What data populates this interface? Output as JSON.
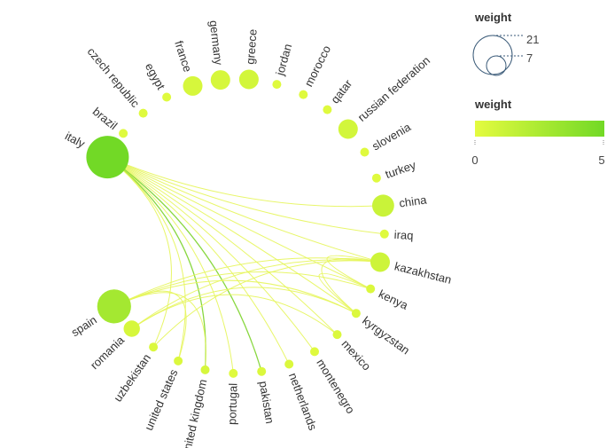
{
  "chart_data": {
    "type": "network",
    "layout": "circular",
    "nodes": [
      {
        "id": "italy",
        "label": "italy",
        "weight": 21,
        "color_value": 5
      },
      {
        "id": "brazil",
        "label": "brazil",
        "weight": 1,
        "color_value": 0.2
      },
      {
        "id": "czech republic",
        "label": "czech republic",
        "weight": 1,
        "color_value": 0.2
      },
      {
        "id": "egypt",
        "label": "egypt",
        "weight": 1,
        "color_value": 0.2
      },
      {
        "id": "france",
        "label": "france",
        "weight": 3,
        "color_value": 0.6
      },
      {
        "id": "germany",
        "label": "germany",
        "weight": 3,
        "color_value": 0.6
      },
      {
        "id": "greece",
        "label": "greece",
        "weight": 3,
        "color_value": 0.8
      },
      {
        "id": "jordan",
        "label": "jordan",
        "weight": 1,
        "color_value": 0.2
      },
      {
        "id": "morocco",
        "label": "morocco",
        "weight": 1,
        "color_value": 0.2
      },
      {
        "id": "qatar",
        "label": "qatar",
        "weight": 1,
        "color_value": 0.2
      },
      {
        "id": "russian federation",
        "label": "russian federation",
        "weight": 3,
        "color_value": 0.8
      },
      {
        "id": "slovenia",
        "label": "slovenia",
        "weight": 1,
        "color_value": 0.2
      },
      {
        "id": "turkey",
        "label": "turkey",
        "weight": 1,
        "color_value": 0.2
      },
      {
        "id": "china",
        "label": "china",
        "weight": 4,
        "color_value": 1.2
      },
      {
        "id": "iraq",
        "label": "iraq",
        "weight": 1,
        "color_value": 0.2
      },
      {
        "id": "kazakhstan",
        "label": "kazakhstan",
        "weight": 3,
        "color_value": 1.0
      },
      {
        "id": "kenya",
        "label": "kenya",
        "weight": 1,
        "color_value": 0.4
      },
      {
        "id": "kyrgyzstan",
        "label": "kyrgyzstan",
        "weight": 1,
        "color_value": 0.4
      },
      {
        "id": "mexico",
        "label": "mexico",
        "weight": 1,
        "color_value": 0.4
      },
      {
        "id": "montenegro",
        "label": "montenegro",
        "weight": 1,
        "color_value": 0.2
      },
      {
        "id": "netherlands",
        "label": "netherlands",
        "weight": 1,
        "color_value": 0.4
      },
      {
        "id": "pakistan",
        "label": "pakistan",
        "weight": 1,
        "color_value": 0.4
      },
      {
        "id": "portugal",
        "label": "portugal",
        "weight": 1,
        "color_value": 0.2
      },
      {
        "id": "united kingdom",
        "label": "united kingdom",
        "weight": 1,
        "color_value": 0.6
      },
      {
        "id": "united states",
        "label": "united states",
        "weight": 1,
        "color_value": 0.4
      },
      {
        "id": "uzbekistan",
        "label": "uzbekistan",
        "weight": 1,
        "color_value": 0.4
      },
      {
        "id": "romania",
        "label": "romania",
        "weight": 2,
        "color_value": 0.6
      },
      {
        "id": "spain",
        "label": "spain",
        "weight": 12,
        "color_value": 2.8
      }
    ],
    "edges": [
      {
        "source": "italy",
        "target": "china",
        "weight": 1
      },
      {
        "source": "italy",
        "target": "kazakhstan",
        "weight": 1
      },
      {
        "source": "italy",
        "target": "iraq",
        "weight": 1
      },
      {
        "source": "italy",
        "target": "kenya",
        "weight": 1
      },
      {
        "source": "italy",
        "target": "kyrgyzstan",
        "weight": 1
      },
      {
        "source": "italy",
        "target": "mexico",
        "weight": 1
      },
      {
        "source": "italy",
        "target": "montenegro",
        "weight": 1
      },
      {
        "source": "italy",
        "target": "netherlands",
        "weight": 1
      },
      {
        "source": "italy",
        "target": "pakistan",
        "weight": 2
      },
      {
        "source": "italy",
        "target": "portugal",
        "weight": 1
      },
      {
        "source": "italy",
        "target": "united kingdom",
        "weight": 2
      },
      {
        "source": "italy",
        "target": "united states",
        "weight": 1
      },
      {
        "source": "italy",
        "target": "uzbekistan",
        "weight": 1
      },
      {
        "source": "spain",
        "target": "united states",
        "weight": 1
      },
      {
        "source": "spain",
        "target": "united kingdom",
        "weight": 1
      },
      {
        "source": "spain",
        "target": "kazakhstan",
        "weight": 1
      },
      {
        "source": "spain",
        "target": "kenya",
        "weight": 1
      },
      {
        "source": "spain",
        "target": "kyrgyzstan",
        "weight": 1
      },
      {
        "source": "romania",
        "target": "kazakhstan",
        "weight": 1
      },
      {
        "source": "romania",
        "target": "kyrgyzstan",
        "weight": 1
      },
      {
        "source": "romania",
        "target": "mexico",
        "weight": 1
      },
      {
        "source": "uzbekistan",
        "target": "kazakhstan",
        "weight": 1
      },
      {
        "source": "kyrgyzstan",
        "target": "kazakhstan",
        "weight": 1
      },
      {
        "source": "kyrgyzstan",
        "target": "kenya",
        "weight": 1
      },
      {
        "source": "kenya",
        "target": "kazakhstan",
        "weight": 1
      }
    ],
    "legend_size": {
      "title": "weight",
      "values": [
        "21",
        "7"
      ]
    },
    "legend_color": {
      "title": "weight",
      "min": "0",
      "max": "5"
    },
    "colors": {
      "low": "#e4fb3f",
      "high": "#72d926",
      "bubble_legend": "#3a5a78",
      "edge_low": "#e6f55a",
      "edge_high": "#7bd32a"
    }
  }
}
